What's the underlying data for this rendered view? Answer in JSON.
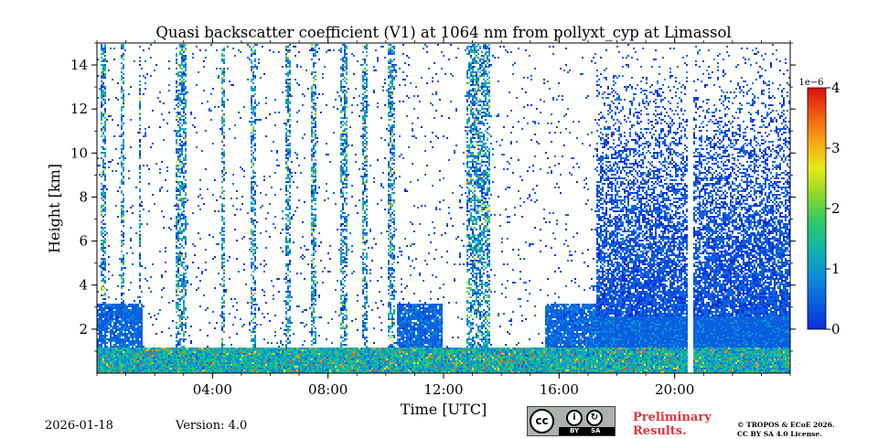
{
  "chart_data": {
    "type": "heatmap",
    "title": "Quasi backscatter coefficient (V1) at 1064 nm from pollyxt_cyp at Limassol",
    "xlabel": "Time [UTC]",
    "ylabel": "Height [km]",
    "xlim_hours": [
      0,
      24
    ],
    "ylim_km": [
      0,
      15
    ],
    "x_ticks": [
      {
        "hour": 4,
        "label": "04:00"
      },
      {
        "hour": 8,
        "label": "08:00"
      },
      {
        "hour": 12,
        "label": "12:00"
      },
      {
        "hour": 16,
        "label": "16:00"
      },
      {
        "hour": 20,
        "label": "20:00"
      }
    ],
    "y_ticks": [
      {
        "value": 2,
        "label": "2"
      },
      {
        "value": 4,
        "label": "4"
      },
      {
        "value": 6,
        "label": "6"
      },
      {
        "value": 8,
        "label": "8"
      },
      {
        "value": 10,
        "label": "10"
      },
      {
        "value": 12,
        "label": "12"
      },
      {
        "value": 14,
        "label": "14"
      }
    ],
    "colorbar": {
      "range": [
        0,
        4
      ],
      "scale_label": "1e−6",
      "ticks": [
        {
          "value": 0,
          "label": "0"
        },
        {
          "value": 1,
          "label": "1"
        },
        {
          "value": 2,
          "label": "2"
        },
        {
          "value": 3,
          "label": "3"
        },
        {
          "value": 4,
          "label": "4"
        }
      ],
      "colors": [
        "#0a2ed8",
        "#0a5fe0",
        "#0b8fd6",
        "#12b4a8",
        "#2ec96a",
        "#8bd92a",
        "#e6ea18",
        "#f6a516",
        "#f25a12",
        "#d8100e"
      ]
    },
    "features": {
      "boundary_layer_top_km": 1.2,
      "elevated_layer_top_km": 3.2,
      "dense_noise_start_hour": 17.3,
      "data_gap_hour": 20.55
    }
  },
  "footer": {
    "date": "2026-01-18",
    "version": "Version: 4.0",
    "license_badge": {
      "cc": "cc",
      "by": "BY",
      "sa": "SA"
    },
    "preliminary_line1": "Preliminary",
    "preliminary_line2": "Results.",
    "copyright_line1": "© TROPOS & ECoE 2026.",
    "copyright_line2": "CC BY SA 4.0 License."
  }
}
